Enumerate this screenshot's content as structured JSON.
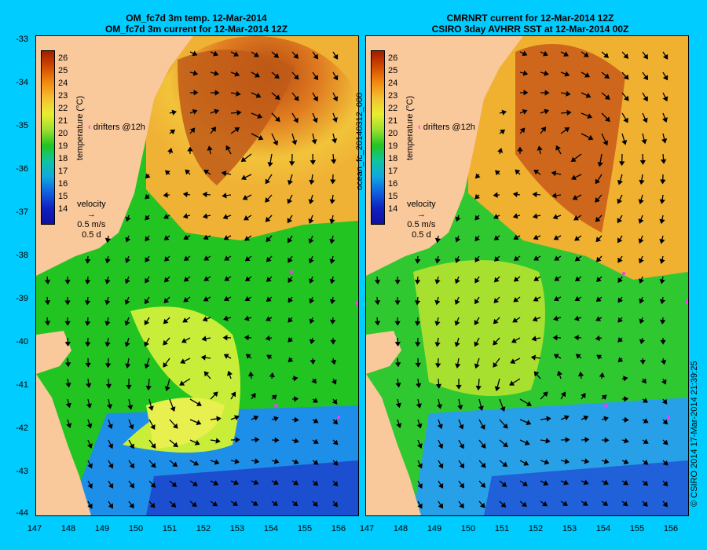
{
  "left_title": {
    "line1": "OM_fc7d 3m temp. 12-Mar-2014",
    "line2": "OM_fc7d 3m current for 12-Mar-2014 12Z"
  },
  "right_title": {
    "line1": "CMRNRT current for 12-Mar-2014 12Z",
    "line2": "CSIRO 3day AVHRR SST at 12-Mar-2014 00Z"
  },
  "y_ticks": [
    "-33",
    "-34",
    "-35",
    "-36",
    "-37",
    "-38",
    "-39",
    "-40",
    "-41",
    "-42",
    "-43",
    "-44"
  ],
  "x_ticks": [
    "147",
    "148",
    "149",
    "150",
    "151",
    "152",
    "153",
    "154",
    "155",
    "156"
  ],
  "colorbar": {
    "labels": [
      "26",
      "25",
      "24",
      "23",
      "22",
      "21",
      "20",
      "19",
      "18",
      "17",
      "16",
      "15",
      "14"
    ],
    "unit_label": "temperature (°C)"
  },
  "drifters_label": "drifters @12h",
  "velocity": {
    "title": "velocity",
    "speed": "0.5 m/s",
    "duration": "0.5 d"
  },
  "forecast_id": "ocean_fc_20140312_000",
  "credit": "© CSIRO 2014   17-Mar-2014 21:39:25",
  "colors": {
    "background": "#00ccff",
    "land": "#f9c89b",
    "drifter": "#ff33ff"
  }
}
